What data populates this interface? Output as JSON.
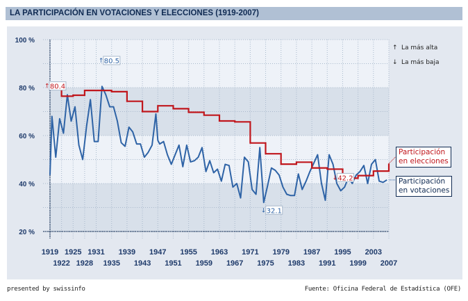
{
  "header": {
    "title": "LA PARTICIPACIÓN EN VOTACIONES Y ELECCIONES (1919-2007)"
  },
  "legend": {
    "highest_label": "La más alta",
    "lowest_label": "La más baja",
    "highest_icon": "arrow-up-icon",
    "lowest_icon": "arrow-down-icon",
    "elections_line1": "Participación",
    "elections_line2": "en elecciones",
    "votes_line1": "Participación",
    "votes_line2": "en votaciones"
  },
  "footer": {
    "left": "presented by swissinfo",
    "right": "Fuente: Oficina Federal de Estadística (OFE)"
  },
  "colors": {
    "elections": "#c0161c",
    "votes": "#2e63a6",
    "title_bar": "#b0c0d4",
    "panel": "#e3e8f0",
    "band_light": "#eef2f8",
    "band_dark": "#d8e0ea",
    "axis_text": "#1e3a6a"
  },
  "chart_data": {
    "type": "line",
    "title": "LA PARTICIPACIÓN EN VOTACIONES Y ELECCIONES (1919-2007)",
    "xlabel": "",
    "ylabel": "",
    "xlim": [
      1919,
      2007
    ],
    "ylim": [
      20,
      100
    ],
    "y_ticks": [
      20,
      40,
      60,
      80,
      100
    ],
    "y_tick_labels": [
      "20 %",
      "40 %",
      "60 %",
      "80 %",
      "100 %"
    ],
    "x_ticks_upper": [
      "1919",
      "1925",
      "1931",
      "1939",
      "1947",
      "1955",
      "1963",
      "1971",
      "1979",
      "1987",
      "1995",
      "2003"
    ],
    "x_ticks_lower": [
      "1922",
      "1928",
      "1935",
      "1943",
      "1951",
      "1959",
      "1967",
      "1975",
      "1983",
      "1991",
      "1999",
      "2007"
    ],
    "grid": true,
    "legend_position": "right",
    "series": [
      {
        "name": "Participación en elecciones",
        "style": "step",
        "x": [
          1919,
          1922,
          1925,
          1928,
          1931,
          1935,
          1939,
          1943,
          1947,
          1951,
          1955,
          1959,
          1963,
          1967,
          1971,
          1975,
          1979,
          1983,
          1987,
          1991,
          1995,
          1999,
          2003,
          2007
        ],
        "values": [
          80.4,
          76.4,
          76.8,
          78.8,
          78.8,
          78.3,
          74.3,
          70.0,
          72.4,
          71.2,
          69.7,
          68.5,
          66.1,
          65.7,
          56.9,
          52.4,
          48.1,
          48.9,
          46.5,
          46.0,
          42.2,
          43.3,
          45.2,
          48.3
        ]
      },
      {
        "name": "Participación en votaciones",
        "style": "line",
        "x": [
          1919,
          1919.5,
          1920.5,
          1921.5,
          1922.5,
          1923.5,
          1924.5,
          1925.5,
          1926.5,
          1927.5,
          1928.5,
          1929.5,
          1930.5,
          1931.5,
          1932.5,
          1933.5,
          1934.5,
          1935.5,
          1936.5,
          1937.5,
          1938.5,
          1939.5,
          1940.5,
          1941.5,
          1942.5,
          1943.5,
          1944.5,
          1945.5,
          1946.5,
          1947,
          1947.5,
          1948.5,
          1949.5,
          1950.5,
          1951.5,
          1952.5,
          1953.5,
          1954.5,
          1955.5,
          1956.5,
          1957.5,
          1958.5,
          1959.5,
          1960.5,
          1961.5,
          1962.5,
          1963.5,
          1964.5,
          1965.5,
          1966.5,
          1967.5,
          1968.5,
          1969.5,
          1970.5,
          1971.5,
          1972.5,
          1973.5,
          1974.5,
          1975.5,
          1976.5,
          1977.5,
          1978.5,
          1979.5,
          1980.5,
          1981.5,
          1982.5,
          1983.5,
          1984.5,
          1985.5,
          1986.5,
          1987.5,
          1988.5,
          1989.5,
          1990.5,
          1991.5,
          1992.5,
          1993.5,
          1994.5,
          1995.5,
          1996.5,
          1997.5,
          1998.5,
          1999.5,
          2000.5,
          2001.5,
          2002.5,
          2003.5,
          2004.5,
          2005.5,
          2006.5
        ],
        "values": [
          43.5,
          68,
          51,
          67,
          61,
          77,
          66,
          72,
          56,
          50,
          64,
          75,
          57.5,
          57.5,
          80.5,
          77,
          72,
          72,
          66,
          57,
          55.5,
          63.5,
          61.5,
          56.5,
          56.5,
          51,
          53,
          56,
          69,
          58,
          56.5,
          57.5,
          52,
          48,
          52,
          56,
          47,
          56,
          49,
          49.5,
          51,
          55,
          45,
          49.5,
          44.5,
          46,
          41,
          48,
          47.5,
          38.5,
          40,
          34,
          51,
          49,
          37.5,
          35.5,
          55,
          32.1,
          39,
          46.5,
          45.5,
          43.5,
          38.5,
          35.5,
          35,
          35,
          44,
          37.5,
          41,
          45,
          48.5,
          52,
          40,
          33,
          52,
          48,
          40,
          37,
          38.5,
          42.5,
          40,
          43.5,
          45,
          47.5,
          40,
          48,
          50,
          41,
          40.5,
          41.5
        ]
      }
    ],
    "annotations": [
      {
        "text": "80.4",
        "series": "Participación en elecciones",
        "marker": "La más alta",
        "year": 1919
      },
      {
        "text": "80.5",
        "series": "Participación en votaciones",
        "marker": "La más alta",
        "year": 1932.5
      },
      {
        "text": "32.1",
        "series": "Participación en votaciones",
        "marker": "La más baja",
        "year": 1974.5
      },
      {
        "text": "42.2",
        "series": "Participación en elecciones",
        "marker": "La más baja",
        "year": 1995
      }
    ]
  }
}
